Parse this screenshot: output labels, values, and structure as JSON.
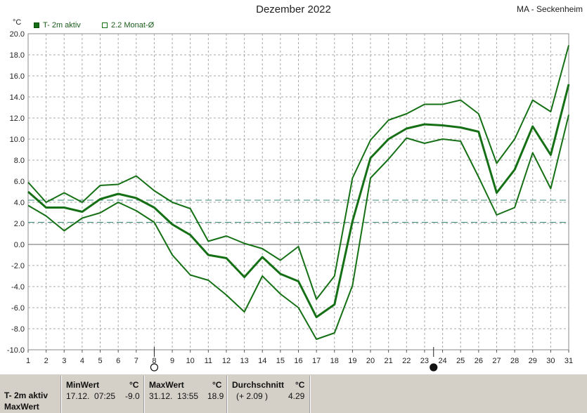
{
  "title": "Dezember 2022",
  "station": "MA - Seckenheim",
  "unit": "°C",
  "legend": [
    {
      "label": "T- 2m aktiv",
      "filled": true
    },
    {
      "label": "2.2 Monat-Ø",
      "filled": false
    }
  ],
  "colors": {
    "series": "#157015",
    "reference": "#3a8a7a",
    "grid": "#a8a8a8"
  },
  "chart_data": {
    "type": "line",
    "x": [
      1,
      2,
      3,
      4,
      5,
      6,
      7,
      8,
      9,
      10,
      11,
      12,
      13,
      14,
      15,
      16,
      17,
      18,
      19,
      20,
      21,
      22,
      23,
      24,
      25,
      26,
      27,
      28,
      29,
      30,
      31
    ],
    "ylim": [
      -10,
      20
    ],
    "yticks": [
      "20.0",
      "18.0",
      "16.0",
      "14.0",
      "12.0",
      "10.0",
      "8.0",
      "6.0",
      "4.0",
      "2.0",
      "0.0",
      "-2.0",
      "-4.0",
      "-6.0",
      "-8.0",
      "-10.0"
    ],
    "xticks": [
      "1",
      "2",
      "3",
      "4",
      "5",
      "6",
      "7",
      "8",
      "9",
      "10",
      "11",
      "12",
      "13",
      "14",
      "15",
      "16",
      "17",
      "18",
      "19",
      "20",
      "21",
      "22",
      "23",
      "24",
      "25",
      "26",
      "27",
      "28",
      "29",
      "30",
      "31"
    ],
    "series": [
      {
        "role": "mean",
        "values": [
          5.0,
          3.5,
          3.5,
          3.1,
          4.3,
          4.8,
          4.4,
          3.5,
          1.9,
          0.9,
          -1.0,
          -1.3,
          -3.1,
          -1.2,
          -2.8,
          -3.5,
          -6.9,
          -5.7,
          2.2,
          8.2,
          10.0,
          11.0,
          11.4,
          11.3,
          11.1,
          10.7,
          4.9,
          7.1,
          11.2,
          8.5,
          15.2
        ]
      },
      {
        "role": "max",
        "values": [
          5.9,
          4.0,
          4.9,
          4.0,
          5.6,
          5.7,
          6.5,
          5.1,
          4.0,
          3.4,
          0.3,
          0.8,
          0.1,
          -0.4,
          -1.5,
          -0.2,
          -5.2,
          -3.0,
          6.3,
          9.9,
          11.8,
          12.4,
          13.3,
          13.3,
          13.7,
          12.4,
          7.7,
          10.0,
          13.7,
          12.6,
          18.9
        ]
      },
      {
        "role": "min",
        "values": [
          3.7,
          2.7,
          1.3,
          2.5,
          3.0,
          4.0,
          3.2,
          2.1,
          -1.0,
          -2.9,
          -3.4,
          -4.8,
          -6.4,
          -3.0,
          -4.7,
          -6.0,
          -9.0,
          -8.4,
          -3.9,
          6.3,
          8.1,
          10.1,
          9.6,
          10.0,
          9.8,
          6.4,
          2.8,
          3.5,
          8.7,
          5.3,
          12.3
        ]
      }
    ],
    "reference_lines": [
      4.2,
      2.1
    ],
    "moon_phases": [
      {
        "day": 8,
        "phase": "full"
      },
      {
        "day": 23.5,
        "phase": "new"
      }
    ],
    "grid": true
  },
  "footer": {
    "row_label": "T- 2m aktiv",
    "row_label2": "MaxWert",
    "min": {
      "header": "MinWert",
      "unit": "°C",
      "datetime": "17.12.  07:25",
      "value": "-9.0"
    },
    "max": {
      "header": "MaxWert",
      "unit": "°C",
      "datetime": "31.12.  13:55",
      "value": "18.9"
    },
    "avg": {
      "header": "Durchschnitt",
      "unit": "°C",
      "deviation": "(+ 2.09 )",
      "value": "4.29"
    }
  }
}
